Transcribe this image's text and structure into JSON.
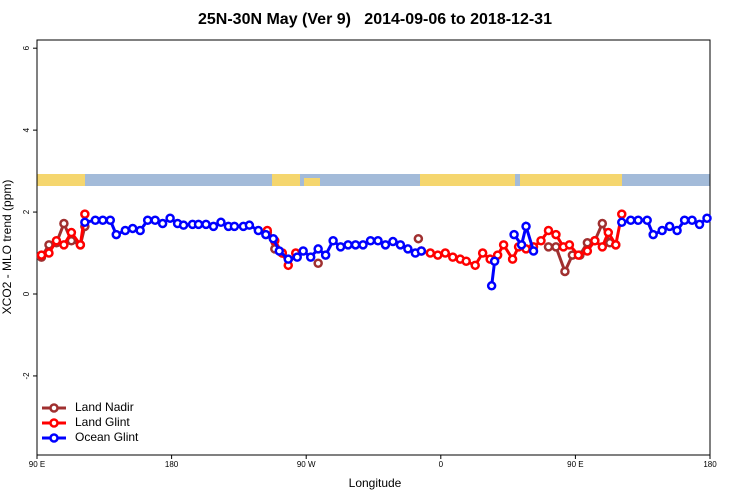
{
  "chart_data": {
    "type": "line",
    "title": "25N-30N May (Ver 9)   2014-09-06 to 2018-12-31",
    "x_label": "Longitude",
    "y_label": "XCO2 - MLO trend (ppm)",
    "xlim": [
      90,
      540
    ],
    "xticks": [
      {
        "value": 90,
        "label": "90 E"
      },
      180,
      {
        "value": 270,
        "label": "90 W"
      },
      {
        "value": 360,
        "label": "0"
      },
      {
        "value": 450,
        "label": "90 E"
      },
      {
        "value": 540,
        "label": "180"
      }
    ],
    "ylim": [
      -3.93,
      6.2
    ],
    "yticks": [
      -2,
      0,
      2,
      4,
      6
    ],
    "legend": "bottom-left",
    "series": [
      {
        "name": "Land Nadir",
        "color": "#a03030",
        "x": [
          93,
          98,
          103,
          108,
          113,
          119,
          122,
          200,
          244,
          249,
          254,
          266,
          278,
          300,
          345,
          400,
          432,
          437,
          443,
          448,
          453,
          458,
          463,
          468,
          473,
          477
        ],
        "values": [
          0.9,
          1.2,
          1.25,
          1.72,
          1.3,
          1.2,
          1.65,
          null,
          1.5,
          1.1,
          1.0,
          null,
          0.75,
          null,
          1.35,
          null,
          1.15,
          1.15,
          0.55,
          0.95,
          0.95,
          1.25,
          1.3,
          1.72,
          1.25,
          1.2
        ]
      },
      {
        "name": "Land Glint",
        "color": "#ff0000",
        "x": [
          93,
          98,
          103,
          108,
          113,
          119,
          122,
          200,
          244,
          249,
          254,
          258,
          263,
          300,
          347,
          353,
          358,
          363,
          368,
          373,
          377,
          383,
          388,
          393,
          398,
          402,
          408,
          412,
          417,
          422,
          427,
          432,
          437,
          442,
          446,
          452,
          458,
          463,
          468,
          472,
          477,
          481
        ],
        "values": [
          0.95,
          1.0,
          1.3,
          1.2,
          1.5,
          1.2,
          1.95,
          null,
          1.55,
          1.3,
          1.0,
          0.7,
          1.0,
          null,
          1.05,
          1.0,
          0.95,
          1.0,
          0.9,
          0.85,
          0.8,
          0.7,
          1.0,
          0.85,
          0.95,
          1.2,
          0.85,
          1.15,
          1.1,
          1.15,
          1.3,
          1.55,
          1.45,
          1.15,
          1.2,
          0.95,
          1.05,
          1.3,
          1.15,
          1.5,
          1.2,
          1.95
        ]
      },
      {
        "name": "Ocean Glint",
        "color": "#0000ff",
        "x": [
          122,
          129,
          134,
          139,
          143,
          149,
          154,
          159,
          164,
          169,
          174,
          179,
          184,
          188,
          194,
          198,
          203,
          208,
          213,
          218,
          222,
          228,
          232,
          238,
          243,
          248,
          252,
          258,
          264,
          268,
          273,
          278,
          283,
          288,
          293,
          298,
          303,
          308,
          313,
          318,
          323,
          328,
          333,
          338,
          343,
          347,
          370,
          394,
          396,
          403,
          409,
          414,
          417,
          422,
          450,
          481,
          487,
          492,
          498,
          502,
          508,
          513,
          518,
          523,
          528,
          533,
          538
        ],
        "values": [
          1.75,
          1.8,
          1.8,
          1.8,
          1.45,
          1.55,
          1.6,
          1.55,
          1.8,
          1.8,
          1.72,
          1.85,
          1.72,
          1.68,
          1.7,
          1.7,
          1.7,
          1.65,
          1.75,
          1.65,
          1.65,
          1.65,
          1.68,
          1.55,
          1.45,
          1.35,
          1.05,
          0.85,
          0.9,
          1.05,
          0.9,
          1.1,
          0.95,
          1.3,
          1.15,
          1.2,
          1.2,
          1.2,
          1.3,
          1.3,
          1.2,
          1.28,
          1.2,
          1.1,
          1.0,
          1.05,
          null,
          0.2,
          0.8,
          null,
          1.45,
          1.2,
          1.65,
          1.05,
          null,
          1.75,
          1.8,
          1.8,
          1.8,
          1.45,
          1.55,
          1.65,
          1.55,
          1.8,
          1.8,
          1.7,
          1.85
        ]
      }
    ]
  }
}
